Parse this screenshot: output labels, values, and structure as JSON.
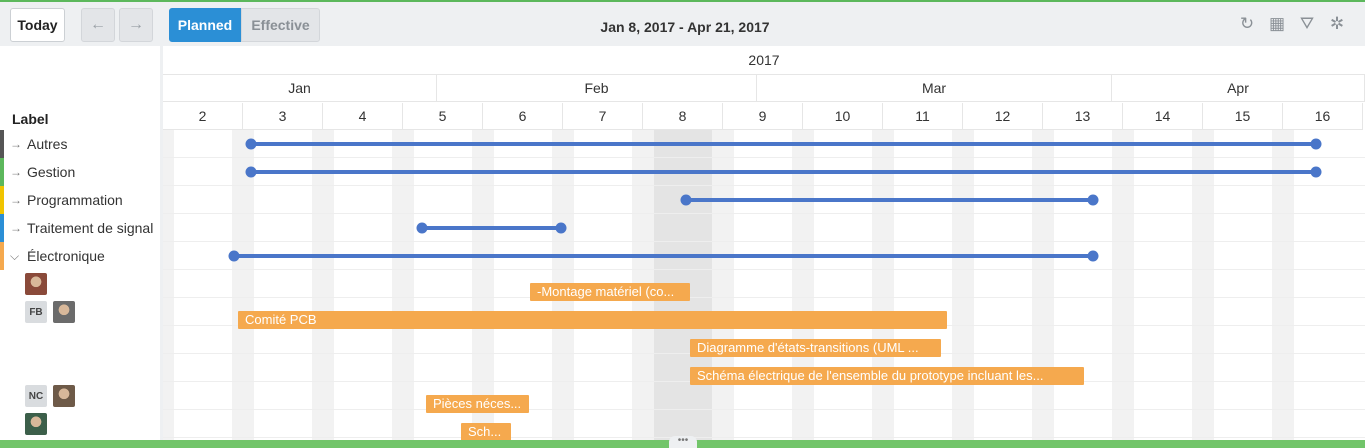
{
  "toolbar": {
    "today_label": "Today",
    "prev_icon": "arrow-left-icon",
    "next_icon": "arrow-right-icon",
    "prev_glyph": "←",
    "next_glyph": "→",
    "planned_label": "Planned",
    "effective_label": "Effective",
    "date_range": "Jan 8, 2017 - Apr 21, 2017",
    "tools": [
      {
        "name": "refresh-icon",
        "glyph": "↻"
      },
      {
        "name": "calendar-icon",
        "glyph": "▦"
      },
      {
        "name": "filter-icon",
        "glyph": "⛛"
      },
      {
        "name": "settings-icon",
        "glyph": "✲"
      }
    ]
  },
  "label_header": "Label",
  "groups": [
    {
      "label": "Autres",
      "color": "#555555",
      "expanded": false
    },
    {
      "label": "Gestion",
      "color": "#5cb85c",
      "expanded": false
    },
    {
      "label": "Programmation",
      "color": "#f0c400",
      "expanded": false
    },
    {
      "label": "Traitement de signal",
      "color": "#2b8fd6",
      "expanded": false
    },
    {
      "label": "Électronique",
      "color": "#f5a94e",
      "expanded": true
    }
  ],
  "assignee_rows": [
    {
      "initials": "",
      "avatars": 1
    },
    {
      "initials": "FB",
      "avatars": 1
    },
    {
      "initials": "",
      "avatars": 0
    },
    {
      "initials": "",
      "avatars": 0
    },
    {
      "initials": "NC",
      "avatars": 1
    },
    {
      "initials": "",
      "avatars": 1
    }
  ],
  "timeline": {
    "year": "2017",
    "months": [
      "Jan",
      "Feb",
      "Mar",
      "Apr"
    ],
    "weeks": [
      "2",
      "3",
      "4",
      "5",
      "6",
      "7",
      "8",
      "9",
      "10",
      "11",
      "12",
      "13",
      "14",
      "15",
      "16"
    ]
  },
  "tasks": [
    {
      "label": "-Montage matériel (co..."
    },
    {
      "label": "Comité PCB"
    },
    {
      "label": "Diagramme d'états-transitions (UML ..."
    },
    {
      "label": "Schéma électrique de l'ensemble du prototype incluant les..."
    },
    {
      "label": "Pièces néces..."
    },
    {
      "label": "Sch..."
    }
  ],
  "colors": {
    "accent": "#2b8fd6",
    "timeline_bar": "#4a76c9",
    "task": "#f5a94e"
  }
}
